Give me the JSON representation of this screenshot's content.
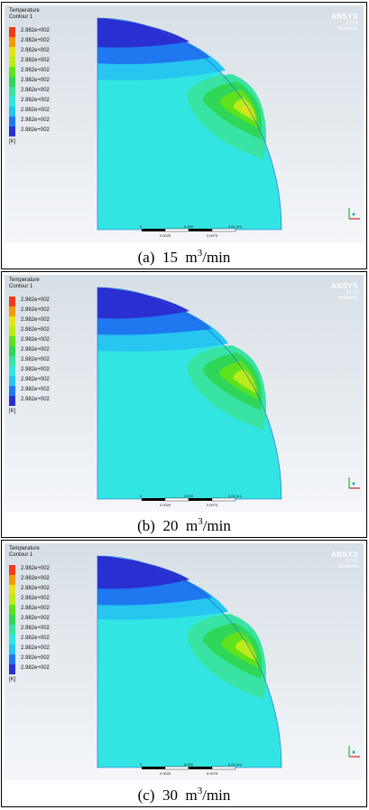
{
  "legend": {
    "title_line1": "Temperature",
    "title_line2": "Contour 1",
    "levels": [
      "2.982e+002",
      "2.982e+002",
      "2.982e+002",
      "2.982e+002",
      "2.982e+002",
      "2.982e+002",
      "2.982e+002",
      "2.982e+002",
      "2.982e+002",
      "2.982e+002",
      "2.982e+002"
    ],
    "unit": "[K]",
    "colors": [
      "#ef3b1b",
      "#f29a0f",
      "#e6e21c",
      "#b9ec18",
      "#5fe11d",
      "#2fd657",
      "#39e3a3",
      "#32e5e3",
      "#26c6f0",
      "#1f78f0",
      "#2a2fd2"
    ]
  },
  "brand": {
    "name": "ANSYS",
    "version": "R17.0",
    "edition": "Academic"
  },
  "scalebar": {
    "zero": "0",
    "mid": "0.005",
    "end": "0.01 (m)",
    "q1": "0.0025",
    "q3": "0.0075"
  },
  "panels": [
    {
      "label": "(a)",
      "value": "15",
      "unit_pre": "m",
      "unit_exp": "3",
      "unit_post": "/min"
    },
    {
      "label": "(b)",
      "value": "20",
      "unit_pre": "m",
      "unit_exp": "3",
      "unit_post": "/min"
    },
    {
      "label": "(c)",
      "value": "30",
      "unit_pre": "m",
      "unit_exp": "3",
      "unit_post": "/min"
    }
  ]
}
